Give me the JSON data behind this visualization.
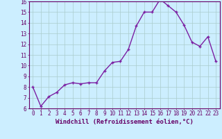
{
  "x": [
    0,
    1,
    2,
    3,
    4,
    5,
    6,
    7,
    8,
    9,
    10,
    11,
    12,
    13,
    14,
    15,
    16,
    17,
    18,
    19,
    20,
    21,
    22,
    23
  ],
  "y": [
    8.0,
    6.2,
    7.1,
    7.5,
    8.2,
    8.4,
    8.3,
    8.4,
    8.4,
    9.5,
    10.3,
    10.4,
    11.5,
    13.7,
    15.0,
    15.0,
    16.2,
    15.6,
    15.0,
    13.8,
    12.2,
    11.8,
    12.7,
    10.4
  ],
  "line_color": "#7b1fa2",
  "marker": "P",
  "marker_size": 2.5,
  "bg_color": "#cceeff",
  "grid_color": "#aacccc",
  "xlabel": "Windchill (Refroidissement éolien,°C)",
  "ylim": [
    6,
    16
  ],
  "xlim_min": -0.5,
  "xlim_max": 23.5,
  "yticks": [
    6,
    7,
    8,
    9,
    10,
    11,
    12,
    13,
    14,
    15,
    16
  ],
  "xticks": [
    0,
    1,
    2,
    3,
    4,
    5,
    6,
    7,
    8,
    9,
    10,
    11,
    12,
    13,
    14,
    15,
    16,
    17,
    18,
    19,
    20,
    21,
    22,
    23
  ],
  "tick_label_size": 5.5,
  "xlabel_size": 6.5,
  "axis_color": "#660066",
  "linewidth": 1.0
}
